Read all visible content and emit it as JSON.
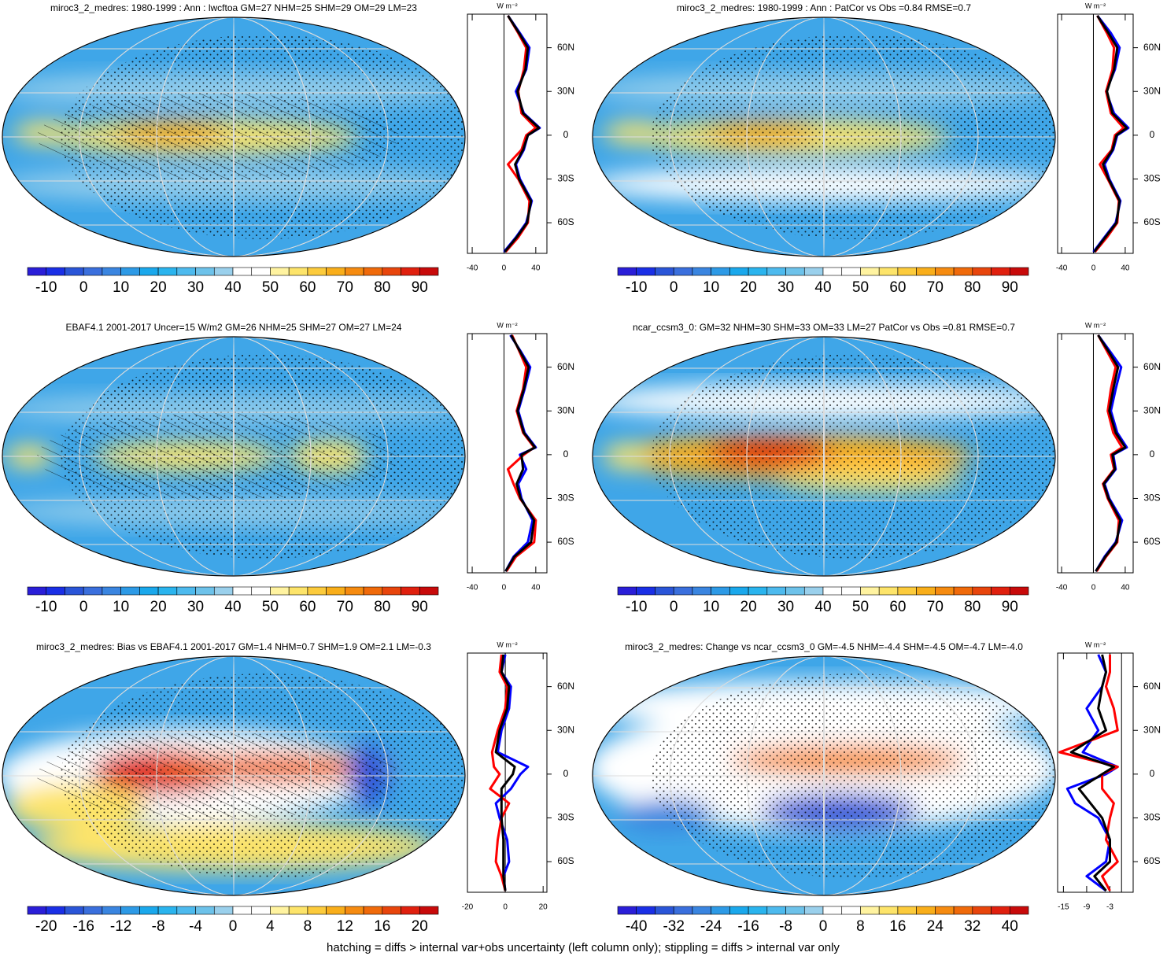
{
  "footer": "hatching = diffs > internal var+obs uncertainty (left column only); stippling = diffs > internal var only",
  "chart_data": [
    {
      "type": "line",
      "title": "miroc3_2_medres: 1980-1999 : Ann : lwcftoa GM=27 NHM=25 SHM=29 OM=29 LM=23",
      "unit_label": "W m⁻²",
      "colorbar": {
        "colors": [
          "#2a1ed8",
          "#1a2fe6",
          "#2a55d8",
          "#3a6fdd",
          "#3a85e0",
          "#2d9ae6",
          "#1aa8ec",
          "#2ab4ee",
          "#4dbaee",
          "#6dc2ea",
          "#9ad0ec",
          "#ffffff",
          "#ffffff",
          "#fff3a0",
          "#fde46a",
          "#fccb3c",
          "#f9ae1a",
          "#f68b10",
          "#f06a0a",
          "#e8450c",
          "#e0200e",
          "#c80a0a"
        ],
        "labels": [
          -10,
          0,
          10,
          20,
          30,
          40,
          50,
          60,
          70,
          80,
          90
        ]
      },
      "lat": [
        82,
        70,
        60,
        45,
        30,
        15,
        5,
        0,
        -10,
        -20,
        -30,
        -45,
        -60,
        -70,
        -80
      ],
      "series": [
        {
          "color": "#0000ff",
          "values": [
            5,
            20,
            32,
            28,
            15,
            25,
            45,
            30,
            25,
            15,
            20,
            35,
            28,
            15,
            0
          ]
        },
        {
          "color": "#ff0000",
          "values": [
            5,
            18,
            28,
            25,
            18,
            22,
            40,
            28,
            22,
            5,
            18,
            32,
            30,
            18,
            2
          ]
        },
        {
          "color": "#000000",
          "values": [
            5,
            19,
            30,
            27,
            17,
            24,
            44,
            30,
            24,
            14,
            19,
            34,
            29,
            16,
            1
          ]
        }
      ],
      "xlim": [
        -46,
        54
      ],
      "xticks": [
        -40,
        0,
        40
      ],
      "ylim": [
        -81,
        83
      ],
      "yticks": [
        {
          "value": 60,
          "label": "60N"
        },
        {
          "value": 30,
          "label": "30N"
        },
        0,
        {
          "value": -30,
          "label": "30S"
        },
        {
          "value": -60,
          "label": "60S"
        }
      ]
    },
    {
      "type": "line",
      "title": "miroc3_2_medres: 1980-1999 : Ann : PatCor vs Obs =0.84 RMSE=0.7",
      "unit_label": "W m⁻²",
      "colorbar": {
        "colors": [
          "#2a1ed8",
          "#1a2fe6",
          "#2a55d8",
          "#3a6fdd",
          "#3a85e0",
          "#2d9ae6",
          "#1aa8ec",
          "#2ab4ee",
          "#4dbaee",
          "#6dc2ea",
          "#9ad0ec",
          "#ffffff",
          "#ffffff",
          "#fff3a0",
          "#fde46a",
          "#fccb3c",
          "#f9ae1a",
          "#f68b10",
          "#f06a0a",
          "#e8450c",
          "#e0200e",
          "#c80a0a"
        ],
        "labels": [
          -10,
          0,
          10,
          20,
          30,
          40,
          50,
          60,
          70,
          80,
          90
        ]
      },
      "lat": [
        82,
        70,
        60,
        45,
        30,
        15,
        5,
        0,
        -10,
        -20,
        -30,
        -45,
        -60,
        -70,
        -80
      ],
      "series": [
        {
          "color": "#0000ff",
          "values": [
            5,
            22,
            33,
            27,
            16,
            26,
            44,
            30,
            25,
            14,
            20,
            34,
            28,
            14,
            0
          ]
        },
        {
          "color": "#ff0000",
          "values": [
            5,
            17,
            26,
            24,
            16,
            22,
            38,
            27,
            23,
            8,
            18,
            32,
            30,
            17,
            2
          ]
        },
        {
          "color": "#000000",
          "values": [
            5,
            19,
            30,
            26,
            17,
            24,
            42,
            29,
            24,
            12,
            19,
            33,
            29,
            15,
            1
          ]
        }
      ],
      "xlim": [
        -45,
        50
      ],
      "xticks": [
        -40,
        0,
        40
      ],
      "ylim": [
        -81,
        83
      ],
      "yticks": [
        {
          "value": 60,
          "label": "60N"
        },
        {
          "value": 30,
          "label": "30N"
        },
        0,
        {
          "value": -30,
          "label": "30S"
        },
        {
          "value": -60,
          "label": "60S"
        }
      ]
    },
    {
      "type": "line",
      "title": "EBAF4.1 2001-2017 Uncer=15 W/m2 GM=26 NHM=25 SHM=27 OM=27 LM=24",
      "unit_label": "W m⁻²",
      "colorbar": {
        "colors": [
          "#2a1ed8",
          "#1a2fe6",
          "#2a55d8",
          "#3a6fdd",
          "#3a85e0",
          "#2d9ae6",
          "#1aa8ec",
          "#2ab4ee",
          "#4dbaee",
          "#6dc2ea",
          "#9ad0ec",
          "#ffffff",
          "#ffffff",
          "#fff3a0",
          "#fde46a",
          "#fccb3c",
          "#f9ae1a",
          "#f68b10",
          "#f06a0a",
          "#e8450c",
          "#e0200e",
          "#c80a0a"
        ],
        "labels": [
          -10,
          0,
          10,
          20,
          30,
          40,
          50,
          60,
          70,
          80,
          90
        ]
      },
      "lat": [
        82,
        70,
        60,
        45,
        30,
        15,
        5,
        0,
        -10,
        -20,
        -30,
        -45,
        -60,
        -70,
        -80
      ],
      "series": [
        {
          "color": "#0000ff",
          "values": [
            8,
            22,
            33,
            26,
            18,
            26,
            40,
            20,
            28,
            18,
            22,
            36,
            30,
            12,
            2
          ]
        },
        {
          "color": "#ff0000",
          "values": [
            10,
            20,
            28,
            24,
            16,
            24,
            38,
            25,
            5,
            12,
            20,
            40,
            38,
            15,
            3
          ]
        },
        {
          "color": "#000000",
          "values": [
            9,
            21,
            31,
            25,
            17,
            25,
            39,
            22,
            24,
            16,
            21,
            38,
            34,
            13,
            2
          ]
        }
      ],
      "xlim": [
        -46,
        54
      ],
      "xticks": [
        -40,
        0,
        40
      ],
      "ylim": [
        -81,
        83
      ],
      "yticks": [
        {
          "value": 60,
          "label": "60N"
        },
        {
          "value": 30,
          "label": "30N"
        },
        0,
        {
          "value": -30,
          "label": "30S"
        },
        {
          "value": -60,
          "label": "60S"
        }
      ]
    },
    {
      "type": "line",
      "title": "ncar_ccsm3_0: GM=32 NHM=30 SHM=33 OM=33 LM=27 PatCor vs Obs =0.81 RMSE=0.7",
      "unit_label": "W m⁻²",
      "colorbar": {
        "colors": [
          "#2a1ed8",
          "#1a2fe6",
          "#2a55d8",
          "#3a6fdd",
          "#3a85e0",
          "#2d9ae6",
          "#1aa8ec",
          "#2ab4ee",
          "#4dbaee",
          "#6dc2ea",
          "#9ad0ec",
          "#ffffff",
          "#ffffff",
          "#fff3a0",
          "#fde46a",
          "#fccb3c",
          "#f9ae1a",
          "#f68b10",
          "#f06a0a",
          "#e8450c",
          "#e0200e",
          "#c80a0a"
        ],
        "labels": [
          -10,
          0,
          10,
          20,
          30,
          40,
          50,
          60,
          70,
          80,
          90
        ]
      },
      "lat": [
        82,
        70,
        60,
        45,
        30,
        15,
        5,
        0,
        -10,
        -20,
        -30,
        -45,
        -60,
        -70,
        -80
      ],
      "series": [
        {
          "color": "#0000ff",
          "values": [
            6,
            22,
            35,
            28,
            22,
            30,
            42,
            25,
            28,
            14,
            20,
            36,
            28,
            14,
            3
          ]
        },
        {
          "color": "#ff0000",
          "values": [
            6,
            18,
            28,
            22,
            18,
            25,
            36,
            22,
            26,
            12,
            18,
            32,
            30,
            16,
            4
          ]
        },
        {
          "color": "#000000",
          "values": [
            6,
            20,
            31,
            25,
            20,
            28,
            40,
            24,
            27,
            13,
            19,
            34,
            29,
            15,
            3
          ]
        }
      ],
      "xlim": [
        -45,
        50
      ],
      "xticks": [
        -40,
        0,
        40
      ],
      "ylim": [
        -81,
        83
      ],
      "yticks": [
        {
          "value": 60,
          "label": "60N"
        },
        {
          "value": 30,
          "label": "30N"
        },
        0,
        {
          "value": -30,
          "label": "30S"
        },
        {
          "value": -60,
          "label": "60S"
        }
      ]
    },
    {
      "type": "line",
      "title": "miroc3_2_medres: Bias vs EBAF4.1 2001-2017 GM=1.4 NHM=0.7 SHM=1.9 OM=2.1 LM=-0.3",
      "unit_label": "W m⁻²",
      "colorbar": {
        "colors": [
          "#2a1ed8",
          "#1a2fe6",
          "#2a55d8",
          "#3a6fdd",
          "#3a85e0",
          "#2d9ae6",
          "#1aa8ec",
          "#2ab4ee",
          "#4dbaee",
          "#6dc2ea",
          "#9ad0ec",
          "#ffffff",
          "#ffffff",
          "#fff3a0",
          "#fde46a",
          "#fccb3c",
          "#f9ae1a",
          "#f68b10",
          "#f06a0a",
          "#e8450c",
          "#e0200e",
          "#c80a0a"
        ],
        "labels": [
          -20,
          -16,
          -12,
          -8,
          -4,
          0,
          4,
          8,
          12,
          16,
          20
        ]
      },
      "lat": [
        82,
        70,
        60,
        45,
        30,
        15,
        5,
        0,
        -10,
        -20,
        -30,
        -45,
        -60,
        -70,
        -80
      ],
      "series": [
        {
          "color": "#0000ff",
          "values": [
            0,
            -2,
            3,
            2,
            -2,
            -4,
            12,
            8,
            3,
            -5,
            -3,
            1,
            2,
            -1,
            0
          ]
        },
        {
          "color": "#ff0000",
          "values": [
            -2,
            -3,
            1,
            0,
            -4,
            -7,
            -6,
            -3,
            -8,
            2,
            -2,
            -4,
            -5,
            -2,
            0
          ]
        },
        {
          "color": "#000000",
          "values": [
            -1,
            -2,
            2,
            1,
            -3,
            -5,
            5,
            4,
            -2,
            -2,
            -2,
            -1,
            -1,
            -1,
            0
          ]
        }
      ],
      "xlim": [
        -20,
        22
      ],
      "xticks": [
        -20,
        0,
        20
      ],
      "ylim": [
        -81,
        83
      ],
      "yticks": [
        {
          "value": 60,
          "label": "60N"
        },
        {
          "value": 30,
          "label": "30N"
        },
        0,
        {
          "value": -30,
          "label": "30S"
        },
        {
          "value": -60,
          "label": "60S"
        }
      ]
    },
    {
      "type": "line",
      "title": "miroc3_2_medres: Change vs ncar_ccsm3_0 GM=-4.5 NHM=-4.4 SHM=-4.5 OM=-4.7 LM=-4.0",
      "unit_label": "W m⁻²",
      "colorbar": {
        "colors": [
          "#2a1ed8",
          "#1a2fe6",
          "#2a55d8",
          "#3a6fdd",
          "#3a85e0",
          "#2d9ae6",
          "#1aa8ec",
          "#2ab4ee",
          "#4dbaee",
          "#6dc2ea",
          "#9ad0ec",
          "#ffffff",
          "#ffffff",
          "#fff3a0",
          "#fde46a",
          "#fccb3c",
          "#f9ae1a",
          "#f68b10",
          "#f06a0a",
          "#e8450c",
          "#e0200e",
          "#c80a0a"
        ],
        "labels": [
          -40,
          -32,
          -24,
          -16,
          -8,
          0,
          8,
          16,
          24,
          32,
          40
        ]
      },
      "lat": [
        82,
        70,
        60,
        45,
        30,
        15,
        5,
        0,
        -10,
        -20,
        -30,
        -45,
        -60,
        -70,
        -80
      ],
      "series": [
        {
          "color": "#0000ff",
          "values": [
            -6,
            -4,
            -5,
            -9,
            -6,
            -10,
            -1,
            -4,
            -14,
            -12,
            -6,
            -3,
            -4,
            -9,
            -4
          ]
        },
        {
          "color": "#ff0000",
          "values": [
            -3,
            -3,
            -4,
            -2,
            -1,
            -16,
            -1,
            -5,
            -5,
            -2,
            -3,
            -4,
            -1,
            -5,
            -3
          ]
        },
        {
          "color": "#000000",
          "values": [
            -5,
            -4,
            -5,
            -6,
            -4,
            -13,
            -2,
            -5,
            -11,
            -8,
            -5,
            -3,
            -3,
            -7,
            -4
          ]
        }
      ],
      "xlim": [
        -16.5,
        3
      ],
      "xticks": [
        -15,
        -9,
        -3
      ],
      "ylim": [
        -81,
        83
      ],
      "yticks": [
        {
          "value": 60,
          "label": "60N"
        },
        {
          "value": 30,
          "label": "30N"
        },
        0,
        {
          "value": -30,
          "label": "30S"
        },
        {
          "value": -60,
          "label": "60S"
        }
      ]
    }
  ]
}
